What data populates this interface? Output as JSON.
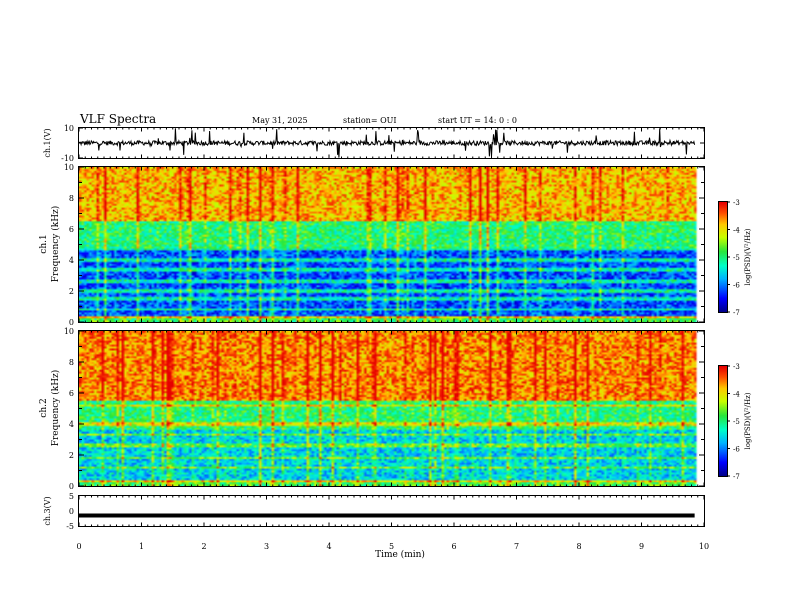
{
  "header": {
    "title": "VLF Spectra",
    "date": "May 31, 2025",
    "station": "station= OUI",
    "start": "start  UT =   14: 0  : 0"
  },
  "chart_data": [
    {
      "type": "line",
      "name": "waveform-ch1",
      "ylabel": "ch.1(V)",
      "ylim": [
        -10,
        10
      ],
      "yticks": [
        "10",
        "-10"
      ],
      "xlim": [
        0,
        10
      ],
      "data_extent_min": 9.85,
      "baseline": 0,
      "spike_range": [
        -10,
        10
      ]
    },
    {
      "type": "heatmap",
      "name": "spectrogram-ch1",
      "ylabel": "ch.1\nFrequency (kHz)",
      "ylim": [
        0,
        10
      ],
      "yticks": [
        "0",
        "2",
        "4",
        "6",
        "8",
        "10"
      ],
      "xlim": [
        0,
        10
      ],
      "data_extent_min": 9.85,
      "colorbar": {
        "label": "log(PSD)(V²/Hz)",
        "ticks": [
          "-3",
          "-4",
          "-5",
          "-6",
          "-7"
        ],
        "range": [
          -7,
          -3
        ]
      },
      "bands_khz": [
        {
          "from": 0,
          "to": 0.4,
          "level": -4.8
        },
        {
          "from": 0.4,
          "to": 4.8,
          "level": -6.2
        },
        {
          "from": 4.8,
          "to": 6.5,
          "level": -5.0
        },
        {
          "from": 6.5,
          "to": 10,
          "level": -3.8
        }
      ],
      "tone_lines_khz": [
        0.3,
        0.8,
        1.5,
        2.0,
        2.6,
        3.4,
        4.0,
        4.7
      ]
    },
    {
      "type": "heatmap",
      "name": "spectrogram-ch2",
      "ylabel": "ch.2\nFrequency (kHz)",
      "ylim": [
        0,
        10
      ],
      "yticks": [
        "0",
        "2",
        "4",
        "6",
        "8",
        "10"
      ],
      "xlim": [
        0,
        10
      ],
      "data_extent_min": 9.85,
      "colorbar": {
        "label": "log(PSD)(V²/Hz)",
        "ticks": [
          "-3",
          "-4",
          "-5",
          "-6",
          "-7"
        ],
        "range": [
          -7,
          -3
        ]
      },
      "bands_khz": [
        {
          "from": 0,
          "to": 0.4,
          "level": -4.8
        },
        {
          "from": 0.4,
          "to": 3.6,
          "level": -5.6
        },
        {
          "from": 3.6,
          "to": 5.5,
          "level": -5.0
        },
        {
          "from": 5.5,
          "to": 10,
          "level": -3.6
        }
      ],
      "tone_lines_khz": [
        0.3,
        1.2,
        1.8,
        2.6,
        3.3,
        4.0,
        5.2
      ]
    },
    {
      "type": "line",
      "name": "waveform-ch3",
      "ylabel": "ch.3(V)",
      "ylim": [
        -5,
        5
      ],
      "yticks": [
        "5",
        "0",
        "-5"
      ],
      "xlim": [
        0,
        10
      ],
      "data_extent_min": 9.85,
      "baseline": -1.5
    }
  ],
  "xaxis": {
    "label": "Time (min)",
    "ticks": [
      "0",
      "1",
      "2",
      "3",
      "4",
      "5",
      "6",
      "7",
      "8",
      "9",
      "10"
    ]
  }
}
